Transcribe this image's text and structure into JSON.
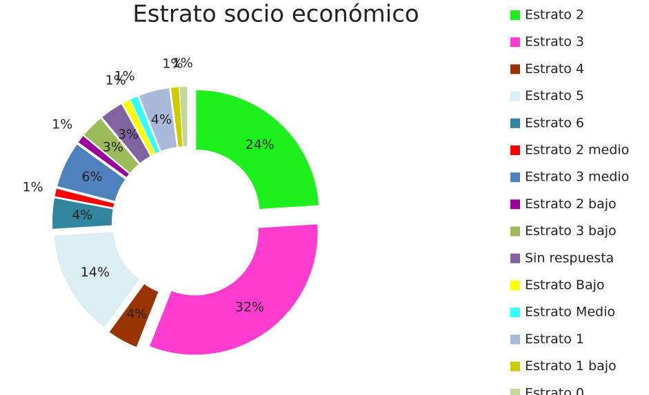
{
  "chart_data": {
    "type": "donut",
    "title": "Estrato socio económico",
    "categories": [
      "Estrato 2",
      "Estrato 3",
      "Estrato 4",
      "Estrato 5",
      "Estrato 6",
      "Estrato 2 medio",
      "Estrato 3 medio",
      "Estrato 2 bajo",
      "Estrato 3 bajo",
      "Sin respuesta",
      "Estrato Bajo",
      "Estrato Medio",
      "Estrato 1",
      "Estrato 1 bajo",
      "Estrato 0"
    ],
    "values": [
      24,
      32,
      4,
      14,
      4,
      1,
      6,
      1,
      3,
      3,
      1,
      1,
      4,
      1,
      1
    ],
    "value_labels": [
      "24%",
      "32%",
      "4%",
      "14%",
      "4%",
      "1%",
      "6%",
      "1%",
      "3%",
      "3%",
      "1%",
      "1%",
      "4%",
      "1%",
      "1%"
    ],
    "colors": [
      "#1ef01e",
      "#ff3ccf",
      "#993300",
      "#dbeef4",
      "#31859c",
      "#ff0000",
      "#4f81bd",
      "#990099",
      "#9bbb59",
      "#8064a2",
      "#ffff00",
      "#33ffff",
      "#a9b9d9",
      "#cccc00",
      "#c4d79b"
    ],
    "legend": "right"
  }
}
